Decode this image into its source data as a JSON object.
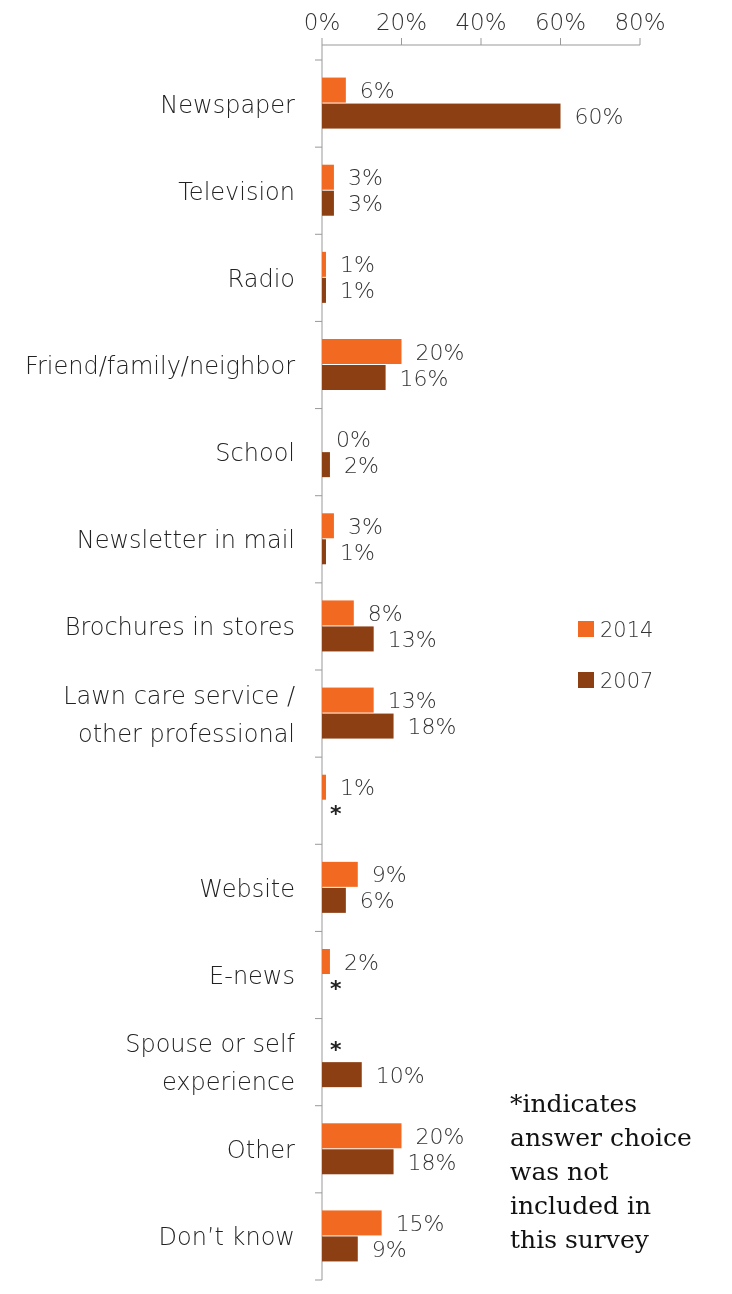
{
  "chart_data": {
    "type": "bar",
    "orientation": "horizontal",
    "categories": [
      "Newspaper",
      "Television",
      "Radio",
      "Friend/family/neighbor",
      "School",
      "Newsletter in mail",
      "Brochures in stores",
      "Lawn care service / other professional",
      null,
      "Website",
      "E-news",
      "Spouse or self experience",
      "Other",
      "Don’t know"
    ],
    "series": [
      {
        "name": "2014",
        "color": "#f26a21",
        "values": [
          6,
          3,
          1,
          20,
          0,
          3,
          8,
          13,
          1,
          9,
          2,
          null,
          20,
          15
        ],
        "value_labels": [
          "6%",
          "3%",
          "1%",
          "20%",
          "0%",
          "3%",
          "8%",
          "13%",
          "1%",
          "9%",
          "2%",
          "*",
          "20%",
          "15%"
        ]
      },
      {
        "name": "2007",
        "color": "#8b3f12",
        "values": [
          60,
          3,
          1,
          16,
          2,
          1,
          13,
          18,
          null,
          6,
          null,
          10,
          18,
          9
        ],
        "value_labels": [
          "60%",
          "3%",
          "1%",
          "16%",
          "2%",
          "1%",
          "13%",
          "18%",
          "*",
          "6%",
          "*",
          "10%",
          "18%",
          "9%"
        ]
      }
    ],
    "xlim": [
      0,
      80
    ],
    "xticks": [
      {
        "value": 0,
        "label": "0%"
      },
      {
        "value": 20,
        "label": "20%"
      },
      {
        "value": 40,
        "label": "40%"
      },
      {
        "value": 60,
        "label": "60%"
      },
      {
        "value": 80,
        "label": "80%"
      }
    ],
    "legend": "right",
    "annotations": [
      "*indicates answer choice was not included in this survey"
    ]
  }
}
